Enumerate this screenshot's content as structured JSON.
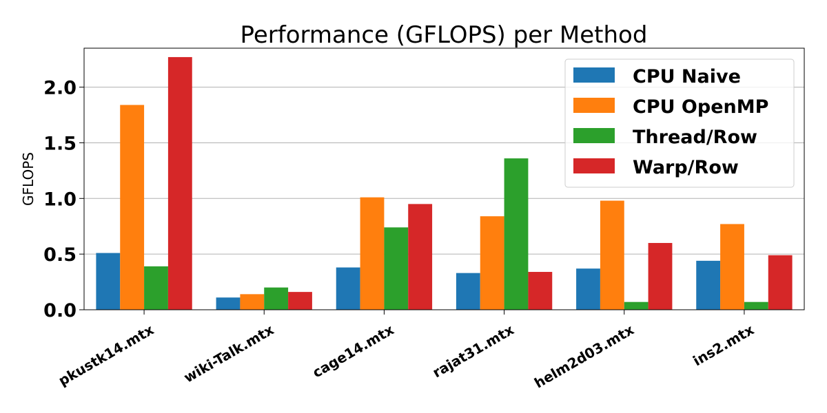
{
  "chart_data": {
    "type": "bar",
    "title": "Performance (GFLOPS) per Method",
    "xlabel": "",
    "ylabel": "GFLOPS",
    "ylim": [
      0,
      2.35
    ],
    "yticks": [
      "0.0",
      "0.5",
      "1.0",
      "1.5",
      "2.0"
    ],
    "grid": "y",
    "legend_position": "top-right",
    "categories": [
      "pkustk14.mtx",
      "wiki-Talk.mtx",
      "cage14.mtx",
      "rajat31.mtx",
      "helm2d03.mtx",
      "ins2.mtx"
    ],
    "series": [
      {
        "name": "CPU Naive",
        "color": "#1f77b4",
        "values": [
          0.51,
          0.11,
          0.38,
          0.33,
          0.37,
          0.44
        ]
      },
      {
        "name": "CPU OpenMP",
        "color": "#ff7f0e",
        "values": [
          1.84,
          0.14,
          1.01,
          0.84,
          0.98,
          0.77
        ]
      },
      {
        "name": "Thread/Row",
        "color": "#2ca02c",
        "values": [
          0.39,
          0.2,
          0.74,
          1.36,
          0.07,
          0.07
        ]
      },
      {
        "name": "Warp/Row",
        "color": "#d62728",
        "values": [
          2.27,
          0.16,
          0.95,
          0.34,
          0.6,
          0.49
        ]
      }
    ]
  }
}
